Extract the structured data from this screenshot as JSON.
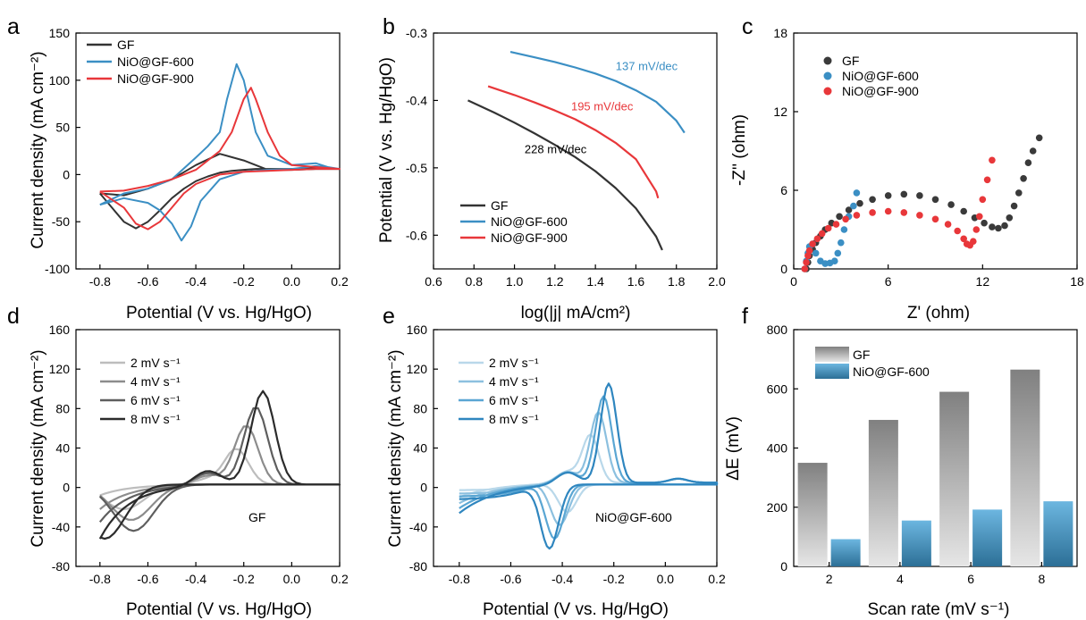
{
  "panels": [
    {
      "id": "a",
      "label": "a",
      "type": "line",
      "xlabel": "Potential (V vs. Hg/HgO)",
      "ylabel": "Current density (mA cm⁻²)",
      "xlim": [
        -0.9,
        0.2
      ],
      "ylim": [
        -100,
        150
      ],
      "xticks": [
        -0.8,
        -0.6,
        -0.4,
        -0.2,
        0.0,
        0.2
      ],
      "xtick_labels": [
        "-0.8",
        "-0.6",
        "-0.4",
        "-0.2",
        "0.0",
        "0.2"
      ],
      "yticks": [
        -100,
        -50,
        0,
        50,
        100,
        150
      ],
      "ytick_labels": [
        "-100",
        "-50",
        "0",
        "50",
        "100",
        "150"
      ],
      "legend": {
        "position": "top-left",
        "items": [
          "GF",
          "NiO@GF-600",
          "NiO@GF-900"
        ]
      },
      "series": [
        {
          "name": "GF",
          "color": "#333333",
          "x": [
            -0.8,
            -0.75,
            -0.7,
            -0.65,
            -0.6,
            -0.55,
            -0.5,
            -0.45,
            -0.4,
            -0.35,
            -0.3,
            -0.25,
            -0.2,
            -0.15,
            -0.13,
            -0.1,
            -0.05,
            0.0,
            0.1,
            0.2,
            0.2,
            0.1,
            0.0,
            -0.1,
            -0.2,
            -0.3,
            -0.4,
            -0.5,
            -0.6,
            -0.7,
            -0.8
          ],
          "y": [
            -20,
            -35,
            -50,
            -57,
            -50,
            -38,
            -25,
            -15,
            -7,
            -2,
            2,
            4,
            5,
            6,
            6,
            6,
            6,
            6,
            7,
            6,
            6,
            6,
            5,
            5,
            15,
            22,
            10,
            -5,
            -15,
            -22,
            -20
          ]
        },
        {
          "name": "NiO@GF-600",
          "color": "#3b8fc4",
          "x": [
            -0.8,
            -0.7,
            -0.6,
            -0.55,
            -0.5,
            -0.46,
            -0.42,
            -0.38,
            -0.3,
            -0.2,
            -0.1,
            0.0,
            0.1,
            0.2,
            0.2,
            0.15,
            0.1,
            0.0,
            -0.1,
            -0.15,
            -0.2,
            -0.23,
            -0.27,
            -0.3,
            -0.35,
            -0.4,
            -0.5,
            -0.6,
            -0.7,
            -0.8
          ],
          "y": [
            -32,
            -25,
            -30,
            -38,
            -52,
            -70,
            -55,
            -28,
            -5,
            3,
            5,
            6,
            9,
            6,
            6,
            8,
            12,
            10,
            20,
            45,
            100,
            117,
            80,
            45,
            30,
            18,
            -5,
            -15,
            -20,
            -32
          ]
        },
        {
          "name": "NiO@GF-900",
          "color": "#e8373a",
          "x": [
            -0.8,
            -0.7,
            -0.65,
            -0.6,
            -0.55,
            -0.5,
            -0.45,
            -0.4,
            -0.3,
            -0.2,
            -0.1,
            0.0,
            0.1,
            0.2,
            0.2,
            0.1,
            0.0,
            -0.05,
            -0.1,
            -0.15,
            -0.17,
            -0.2,
            -0.25,
            -0.3,
            -0.35,
            -0.4,
            -0.5,
            -0.6,
            -0.7,
            -0.8
          ],
          "y": [
            -18,
            -35,
            -52,
            -58,
            -50,
            -35,
            -20,
            -10,
            0,
            3,
            4,
            5,
            6,
            6,
            6,
            8,
            10,
            20,
            45,
            80,
            92,
            80,
            45,
            25,
            15,
            5,
            -5,
            -12,
            -17,
            -18
          ]
        }
      ]
    },
    {
      "id": "b",
      "label": "b",
      "type": "line",
      "xlabel": "log(|j| mA/cm²)",
      "ylabel": "Potential (V vs. Hg/HgO)",
      "xlim": [
        0.6,
        2.0
      ],
      "ylim": [
        -0.65,
        -0.3
      ],
      "xticks": [
        0.6,
        0.8,
        1.0,
        1.2,
        1.4,
        1.6,
        1.8,
        2.0
      ],
      "xtick_labels": [
        "0.6",
        "0.8",
        "1.0",
        "1.2",
        "1.4",
        "1.6",
        "1.8",
        "2.0"
      ],
      "yticks": [
        -0.6,
        -0.5,
        -0.4,
        -0.3
      ],
      "ytick_labels": [
        "-0.6",
        "-0.5",
        "-0.4",
        "-0.3"
      ],
      "legend": {
        "position": "bottom-left",
        "items": [
          "GF",
          "NiO@GF-600",
          "NiO@GF-900"
        ]
      },
      "annotations": [
        {
          "text": "228 mV/dec",
          "x": 1.05,
          "y": -0.478,
          "color": "#000000"
        },
        {
          "text": "195 mV/dec",
          "x": 1.28,
          "y": -0.415,
          "color": "#e8373a"
        },
        {
          "text": "137 mV/dec",
          "x": 1.5,
          "y": -0.355,
          "color": "#3b8fc4"
        }
      ],
      "series": [
        {
          "name": "GF",
          "color": "#333333",
          "x": [
            0.77,
            0.9,
            1.0,
            1.1,
            1.2,
            1.3,
            1.4,
            1.5,
            1.6,
            1.7,
            1.73
          ],
          "y": [
            -0.4,
            -0.418,
            -0.433,
            -0.449,
            -0.466,
            -0.484,
            -0.505,
            -0.53,
            -0.56,
            -0.602,
            -0.622
          ]
        },
        {
          "name": "NiO@GF-600",
          "color": "#3b8fc4",
          "x": [
            0.98,
            1.1,
            1.2,
            1.3,
            1.4,
            1.5,
            1.6,
            1.7,
            1.8,
            1.84
          ],
          "y": [
            -0.328,
            -0.336,
            -0.343,
            -0.351,
            -0.36,
            -0.371,
            -0.385,
            -0.402,
            -0.43,
            -0.448
          ]
        },
        {
          "name": "NiO@GF-900",
          "color": "#e8373a",
          "x": [
            0.87,
            1.0,
            1.1,
            1.2,
            1.3,
            1.4,
            1.5,
            1.6,
            1.7,
            1.71
          ],
          "y": [
            -0.379,
            -0.392,
            -0.403,
            -0.415,
            -0.428,
            -0.444,
            -0.463,
            -0.487,
            -0.535,
            -0.545
          ]
        }
      ]
    },
    {
      "id": "c",
      "label": "c",
      "type": "scatter",
      "xlabel": "Z' (ohm)",
      "ylabel": "-Z'' (ohm)",
      "xlim": [
        0,
        18
      ],
      "ylim": [
        0,
        18
      ],
      "xticks": [
        0,
        6,
        12,
        18
      ],
      "xtick_labels": [
        "0",
        "6",
        "12",
        "18"
      ],
      "yticks": [
        0,
        6,
        12,
        18
      ],
      "ytick_labels": [
        "0",
        "6",
        "12",
        "18"
      ],
      "legend": {
        "position": "top-left",
        "items": [
          "GF",
          "NiO@GF-600",
          "NiO@GF-900"
        ]
      },
      "series": [
        {
          "name": "GF",
          "color": "#3a3a3a",
          "x": [
            0.8,
            0.9,
            1.0,
            1.2,
            1.4,
            1.7,
            2.0,
            2.4,
            2.9,
            3.5,
            4.2,
            5.0,
            6.0,
            7.0,
            8.0,
            9.0,
            10.0,
            10.8,
            11.5,
            12.1,
            12.6,
            13.0,
            13.4,
            13.7,
            14.0,
            14.3,
            14.6,
            14.9,
            15.2,
            15.6
          ],
          "y": [
            0.0,
            0.5,
            1.0,
            1.5,
            2.0,
            2.5,
            3.0,
            3.5,
            4.0,
            4.5,
            5.0,
            5.3,
            5.6,
            5.7,
            5.6,
            5.3,
            4.9,
            4.4,
            3.9,
            3.5,
            3.2,
            3.1,
            3.3,
            3.9,
            4.8,
            5.8,
            6.9,
            8.1,
            9.0,
            10.0
          ]
        },
        {
          "name": "NiO@GF-600",
          "color": "#3b8fc4",
          "x": [
            0.7,
            0.8,
            0.9,
            1.0,
            1.2,
            1.4,
            1.7,
            2.0,
            2.3,
            2.6,
            2.8,
            3.0,
            3.2,
            3.5,
            3.8,
            4.0
          ],
          "y": [
            0.0,
            0.6,
            1.2,
            1.7,
            1.9,
            1.2,
            0.6,
            0.4,
            0.45,
            0.6,
            1.2,
            2.0,
            3.0,
            4.0,
            4.8,
            5.8
          ]
        },
        {
          "name": "NiO@GF-900",
          "color": "#e8373a",
          "x": [
            0.7,
            0.8,
            0.9,
            1.0,
            1.2,
            1.5,
            1.8,
            2.2,
            2.7,
            3.3,
            4.0,
            5.0,
            6.0,
            7.0,
            8.0,
            9.0,
            9.8,
            10.4,
            10.8,
            11.0,
            11.2,
            11.4,
            11.6,
            11.8,
            12.0,
            12.3,
            12.6
          ],
          "y": [
            0.0,
            0.5,
            1.0,
            1.4,
            1.9,
            2.3,
            2.7,
            3.1,
            3.4,
            3.8,
            4.1,
            4.3,
            4.4,
            4.3,
            4.1,
            3.8,
            3.4,
            2.9,
            2.3,
            1.9,
            1.8,
            2.1,
            3.0,
            4.0,
            5.3,
            6.8,
            8.3
          ]
        }
      ]
    },
    {
      "id": "d",
      "label": "d",
      "type": "line",
      "xlabel": "Potential (V vs. Hg/HgO)",
      "ylabel": "Current density (mA cm⁻²)",
      "xlim": [
        -0.9,
        0.2
      ],
      "ylim": [
        -80,
        160
      ],
      "xticks": [
        -0.8,
        -0.6,
        -0.4,
        -0.2,
        0.0,
        0.2
      ],
      "xtick_labels": [
        "-0.8",
        "-0.6",
        "-0.4",
        "-0.2",
        "0.0",
        "0.2"
      ],
      "yticks": [
        -80,
        -40,
        0,
        40,
        80,
        120,
        160
      ],
      "ytick_labels": [
        "-80",
        "-40",
        "0",
        "40",
        "80",
        "120",
        "160"
      ],
      "legend": {
        "position": "top-left",
        "items": [
          "2 mV s⁻¹",
          "4 mV s⁻¹",
          "6 mV s⁻¹",
          "8 mV s⁻¹"
        ]
      },
      "annotation": "GF",
      "series": [
        {
          "name": "2 mV s⁻¹",
          "color": "#bdbdbd",
          "peak": 36,
          "peak_x": -0.23,
          "low": -8,
          "low_min": -22,
          "low_x": -0.7
        },
        {
          "name": "4 mV s⁻¹",
          "color": "#8c8c8c",
          "peak": 60,
          "peak_x": -0.19,
          "low": -22,
          "low_min": -33,
          "low_x": -0.67
        },
        {
          "name": "6 mV s⁻¹",
          "color": "#5e5e5e",
          "peak": 79,
          "peak_x": -0.15,
          "low": -35,
          "low_min": -44,
          "low_x": -0.66
        },
        {
          "name": "8 mV s⁻¹",
          "color": "#2b2b2b",
          "peak": 95,
          "peak_x": -0.12,
          "low": -52,
          "low_min": -52,
          "low_x": -0.78
        }
      ]
    },
    {
      "id": "e",
      "label": "e",
      "type": "line",
      "xlabel": "Potential (V vs. Hg/HgO)",
      "ylabel": "Current density (mA cm⁻²)",
      "xlim": [
        -0.9,
        0.2
      ],
      "ylim": [
        -80,
        160
      ],
      "xticks": [
        -0.8,
        -0.6,
        -0.4,
        -0.2,
        0.0,
        0.2
      ],
      "xtick_labels": [
        "-0.8",
        "-0.6",
        "-0.4",
        "-0.2",
        "0.0",
        "0.2"
      ],
      "yticks": [
        -80,
        -40,
        0,
        40,
        80,
        120,
        160
      ],
      "ytick_labels": [
        "-80",
        "-40",
        "0",
        "40",
        "80",
        "120",
        "160"
      ],
      "legend": {
        "position": "top-left",
        "items": [
          "2 mV s⁻¹",
          "4 mV s⁻¹",
          "6 mV s⁻¹",
          "8 mV s⁻¹"
        ]
      },
      "annotation": "NiO@GF-600",
      "series": [
        {
          "name": "2 mV s⁻¹",
          "color": "#b9d8ea",
          "peak": 48,
          "peak_x": -0.29,
          "valley": -25,
          "valley_x": -0.38,
          "low": -10
        },
        {
          "name": "4 mV s⁻¹",
          "color": "#8cc0df",
          "peak": 72,
          "peak_x": -0.26,
          "valley": -38,
          "valley_x": -0.41,
          "low": -16
        },
        {
          "name": "6 mV s⁻¹",
          "color": "#5aa6d3",
          "peak": 88,
          "peak_x": -0.24,
          "valley": -52,
          "valley_x": -0.43,
          "low": -21
        },
        {
          "name": "8 mV s⁻¹",
          "color": "#2f86bf",
          "peak": 101,
          "peak_x": -0.22,
          "valley": -62,
          "valley_x": -0.45,
          "low": -26
        }
      ]
    },
    {
      "id": "f",
      "label": "f",
      "type": "bar",
      "xlabel": "Scan rate (mV s⁻¹)",
      "ylabel": "ΔE (mV)",
      "categories": [
        "2",
        "4",
        "6",
        "8"
      ],
      "ylim": [
        0,
        800
      ],
      "yticks": [
        0,
        200,
        400,
        600,
        800
      ],
      "ytick_labels": [
        "0",
        "200",
        "400",
        "600",
        "800"
      ],
      "legend": {
        "position": "top-left",
        "items": [
          "GF",
          "NiO@GF-600"
        ]
      },
      "series": [
        {
          "name": "GF",
          "color_top": "#808080",
          "color_bottom": "#e6e6e6",
          "values": [
            350,
            495,
            590,
            665
          ]
        },
        {
          "name": "NiO@GF-600",
          "color_top": "#6cb6e0",
          "color_bottom": "#2c6f96",
          "values": [
            92,
            155,
            192,
            220
          ]
        }
      ]
    }
  ]
}
